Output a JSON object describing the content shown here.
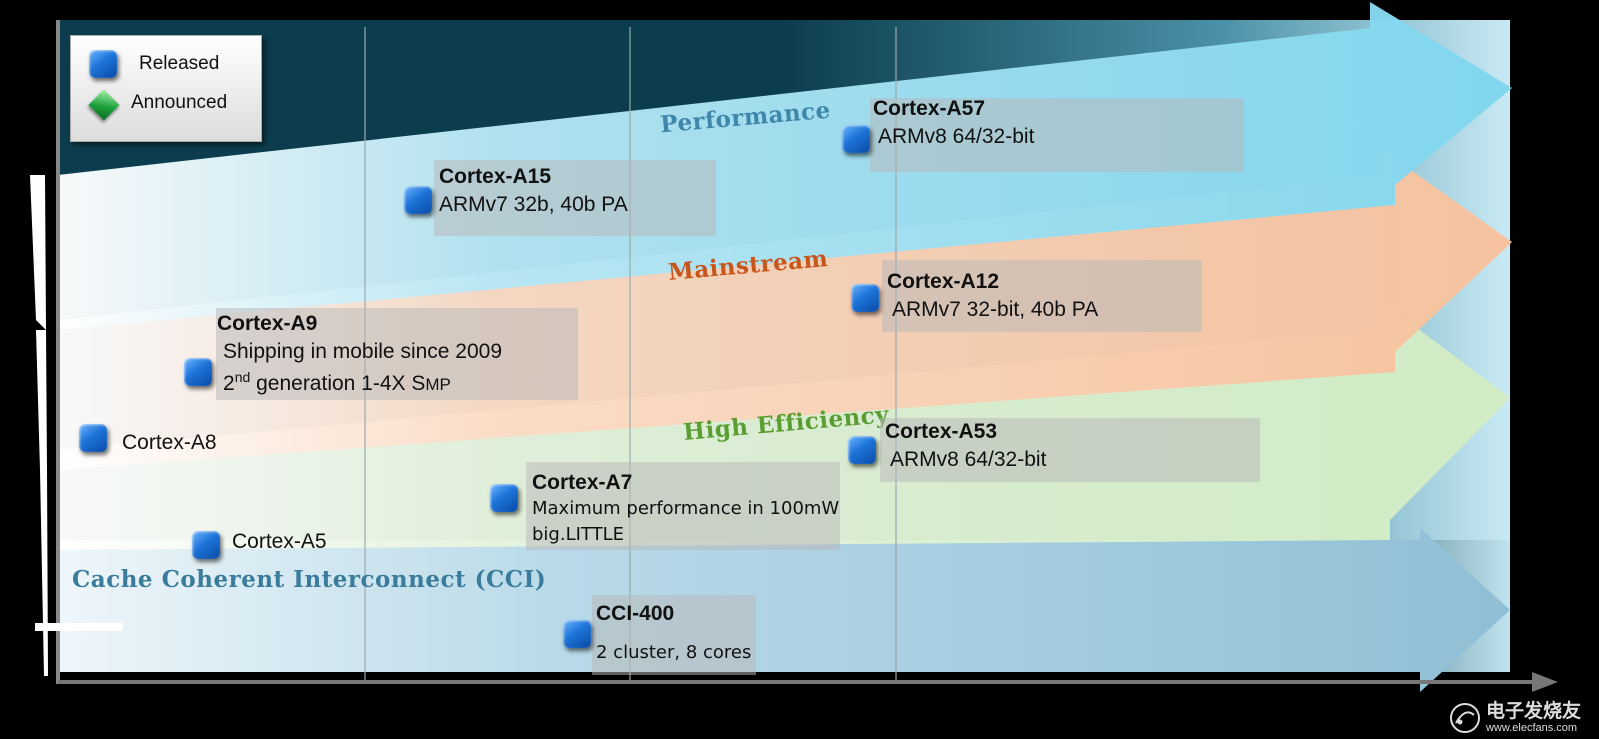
{
  "legend": {
    "released_label": "Released",
    "announced_label": "Announced"
  },
  "lanes": {
    "performance": "Performance",
    "mainstream": "Mainstream",
    "high_efficiency": "High Efficiency",
    "cci": "Cache Coherent Interconnect (CCI)"
  },
  "cores": {
    "a57": {
      "name": "Cortex-A57",
      "desc": "ARMv8 64/32-bit"
    },
    "a15": {
      "name": "Cortex-A15",
      "desc": "ARMv7 32b, 40b PA"
    },
    "a12": {
      "name": "Cortex-A12",
      "desc": "ARMv7 32-bit, 40b PA"
    },
    "a9": {
      "name": "Cortex-A9",
      "desc1": "Shipping in mobile since 2009",
      "desc2_pre": "2",
      "desc2_sup": "nd",
      "desc2_post": " generation 1-4X S",
      "desc2_small": "MP"
    },
    "a8": {
      "name": "Cortex-A8"
    },
    "a53": {
      "name": "Cortex-A53",
      "desc": "ARMv8 64/32-bit"
    },
    "a7": {
      "name": "Cortex-A7",
      "desc1": "Maximum performance in 100mW",
      "desc2": "big.LITTLE"
    },
    "a5": {
      "name": "Cortex-A5"
    },
    "cci400": {
      "name": "CCI-400",
      "desc": "2 cluster, 8 cores"
    }
  },
  "watermark": {
    "cn": "电子发烧友",
    "url": "www.elecfans.com"
  },
  "colors": {
    "performance_lane": "#88d8ee",
    "mainstream_lane": "#f8c6a2",
    "efficiency_lane": "#d6eec8",
    "cci_lane": "#9cc7da",
    "performance_text": "#3e86aa",
    "mainstream_text": "#c8561c",
    "efficiency_text": "#5a9e32",
    "cci_text": "#3a7c9c"
  }
}
